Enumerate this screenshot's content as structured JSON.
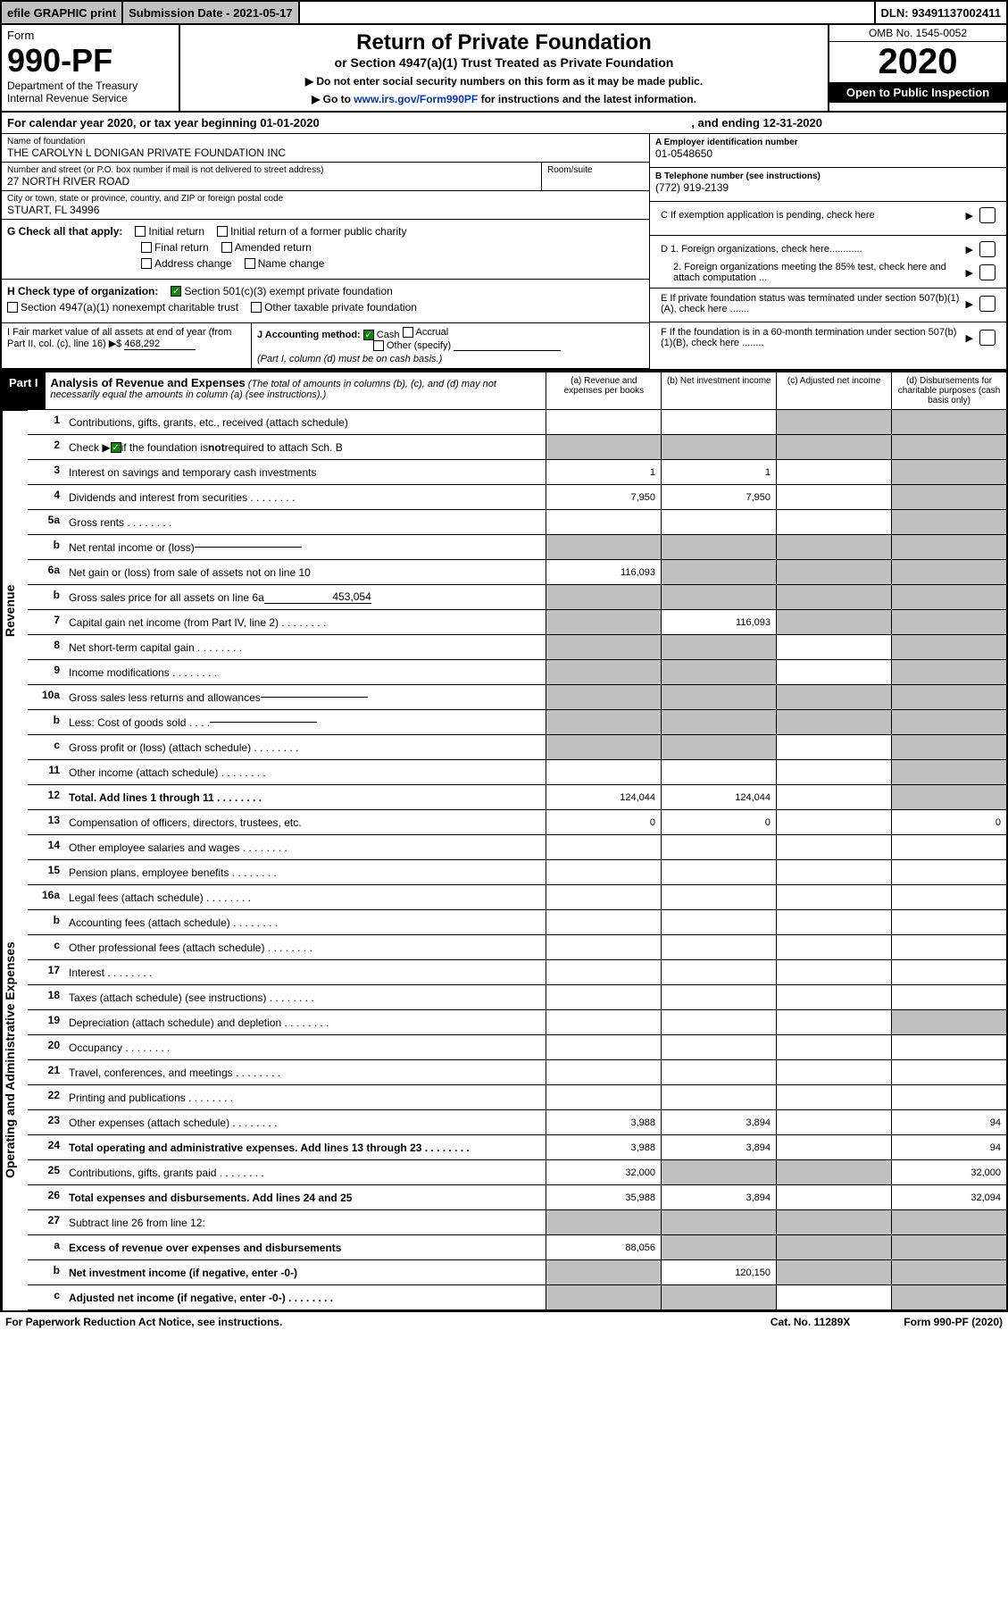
{
  "topbar": {
    "efile": "efile GRAPHIC print",
    "subdate": "Submission Date - 2021-05-17",
    "dln": "DLN: 93491137002411"
  },
  "header": {
    "form": "Form",
    "formnum": "990-PF",
    "dept": "Department of the Treasury",
    "irs": "Internal Revenue Service",
    "title": "Return of Private Foundation",
    "subtitle": "or Section 4947(a)(1) Trust Treated as Private Foundation",
    "note1": "▶ Do not enter social security numbers on this form as it may be made public.",
    "note2": "▶ Go to www.irs.gov/Form990PF for instructions and the latest information.",
    "link": "www.irs.gov/Form990PF",
    "omb": "OMB No. 1545-0052",
    "year": "2020",
    "open": "Open to Public Inspection"
  },
  "cal": {
    "text": "For calendar year 2020, or tax year beginning 01-01-2020",
    "end": ", and ending 12-31-2020"
  },
  "entity": {
    "name_lbl": "Name of foundation",
    "name": "THE CAROLYN L DONIGAN PRIVATE FOUNDATION INC",
    "addr_lbl": "Number and street (or P.O. box number if mail is not delivered to street address)",
    "addr": "27 NORTH RIVER ROAD",
    "room_lbl": "Room/suite",
    "city_lbl": "City or town, state or province, country, and ZIP or foreign postal code",
    "city": "STUART, FL  34996",
    "a_lbl": "A Employer identification number",
    "ein": "01-0548650",
    "b_lbl": "B Telephone number (see instructions)",
    "phone": "(772) 919-2139",
    "c_lbl": "C If exemption application is pending, check here",
    "d1": "D 1. Foreign organizations, check here............",
    "d2": "2. Foreign organizations meeting the 85% test, check here and attach computation ...",
    "e": "E If private foundation status was terminated under section 507(b)(1)(A), check here .......",
    "f": "F If the foundation is in a 60-month termination under section 507(b)(1)(B), check here ........"
  },
  "g": {
    "lbl": "G Check all that apply:",
    "initial": "Initial return",
    "initial_former": "Initial return of a former public charity",
    "final": "Final return",
    "amended": "Amended return",
    "addr_change": "Address change",
    "name_change": "Name change"
  },
  "h": {
    "lbl": "H Check type of organization:",
    "s501": "Section 501(c)(3) exempt private foundation",
    "s4947": "Section 4947(a)(1) nonexempt charitable trust",
    "other": "Other taxable private foundation"
  },
  "i": {
    "lbl": "I Fair market value of all assets at end of year (from Part II, col. (c), line 16) ▶$",
    "val": "468,292"
  },
  "j": {
    "lbl": "J Accounting method:",
    "cash": "Cash",
    "accrual": "Accrual",
    "other": "Other (specify)",
    "note": "(Part I, column (d) must be on cash basis.)"
  },
  "part1": {
    "hdr": "Part I",
    "title": "Analysis of Revenue and Expenses",
    "sub": "(The total of amounts in columns (b), (c), and (d) may not necessarily equal the amounts in column (a) (see instructions).)",
    "cols": {
      "a": "(a)   Revenue and expenses per books",
      "b": "(b)   Net investment income",
      "c": "(c)   Adjusted net income",
      "d": "(d)   Disbursements for charitable purposes (cash basis only)"
    }
  },
  "sides": {
    "rev": "Revenue",
    "exp": "Operating and Administrative Expenses"
  },
  "rows": [
    {
      "n": "1",
      "d": "Contributions, gifts, grants, etc., received (attach schedule)",
      "a": "",
      "b": "",
      "c": "g",
      "dd": "g"
    },
    {
      "n": "2",
      "d": "Check ▶ ☑ if the foundation is not required to attach Sch. B",
      "a": "g",
      "b": "g",
      "c": "g",
      "dd": "g",
      "checked": true
    },
    {
      "n": "3",
      "d": "Interest on savings and temporary cash investments",
      "a": "1",
      "b": "1",
      "c": "",
      "dd": "g"
    },
    {
      "n": "4",
      "d": "Dividends and interest from securities",
      "a": "7,950",
      "b": "7,950",
      "c": "",
      "dd": "g",
      "dots": true
    },
    {
      "n": "5a",
      "d": "Gross rents",
      "a": "",
      "b": "",
      "c": "",
      "dd": "g",
      "dots": true
    },
    {
      "n": "b",
      "d": "Net rental income or (loss)",
      "a": "g",
      "b": "g",
      "c": "g",
      "dd": "g",
      "uline": true
    },
    {
      "n": "6a",
      "d": "Net gain or (loss) from sale of assets not on line 10",
      "a": "116,093",
      "b": "g",
      "c": "g",
      "dd": "g"
    },
    {
      "n": "b",
      "d": "Gross sales price for all assets on line 6a",
      "a": "g",
      "b": "g",
      "c": "g",
      "dd": "g",
      "uline": true,
      "uval": "453,054"
    },
    {
      "n": "7",
      "d": "Capital gain net income (from Part IV, line 2)",
      "a": "g",
      "b": "116,093",
      "c": "g",
      "dd": "g",
      "dots": true
    },
    {
      "n": "8",
      "d": "Net short-term capital gain",
      "a": "g",
      "b": "g",
      "c": "",
      "dd": "g",
      "dots": true
    },
    {
      "n": "9",
      "d": "Income modifications",
      "a": "g",
      "b": "g",
      "c": "",
      "dd": "g",
      "dots": true
    },
    {
      "n": "10a",
      "d": "Gross sales less returns and allowances",
      "a": "g",
      "b": "g",
      "c": "g",
      "dd": "g",
      "uline": true
    },
    {
      "n": "b",
      "d": "Less: Cost of goods sold",
      "a": "g",
      "b": "g",
      "c": "g",
      "dd": "g",
      "dots": true,
      "uline": true
    },
    {
      "n": "c",
      "d": "Gross profit or (loss) (attach schedule)",
      "a": "g",
      "b": "g",
      "c": "",
      "dd": "g",
      "dots": true
    },
    {
      "n": "11",
      "d": "Other income (attach schedule)",
      "a": "",
      "b": "",
      "c": "",
      "dd": "g",
      "dots": true
    },
    {
      "n": "12",
      "d": "Total. Add lines 1 through 11",
      "a": "124,044",
      "b": "124,044",
      "c": "",
      "dd": "g",
      "dots": true,
      "bold": true
    }
  ],
  "rows2": [
    {
      "n": "13",
      "d": "Compensation of officers, directors, trustees, etc.",
      "a": "0",
      "b": "0",
      "c": "",
      "dd": "0"
    },
    {
      "n": "14",
      "d": "Other employee salaries and wages",
      "a": "",
      "b": "",
      "c": "",
      "dd": "",
      "dots": true
    },
    {
      "n": "15",
      "d": "Pension plans, employee benefits",
      "a": "",
      "b": "",
      "c": "",
      "dd": "",
      "dots": true
    },
    {
      "n": "16a",
      "d": "Legal fees (attach schedule)",
      "a": "",
      "b": "",
      "c": "",
      "dd": "",
      "dots": true
    },
    {
      "n": "b",
      "d": "Accounting fees (attach schedule)",
      "a": "",
      "b": "",
      "c": "",
      "dd": "",
      "dots": true
    },
    {
      "n": "c",
      "d": "Other professional fees (attach schedule)",
      "a": "",
      "b": "",
      "c": "",
      "dd": "",
      "dots": true
    },
    {
      "n": "17",
      "d": "Interest",
      "a": "",
      "b": "",
      "c": "",
      "dd": "",
      "dots": true
    },
    {
      "n": "18",
      "d": "Taxes (attach schedule) (see instructions)",
      "a": "",
      "b": "",
      "c": "",
      "dd": "",
      "dots": true
    },
    {
      "n": "19",
      "d": "Depreciation (attach schedule) and depletion",
      "a": "",
      "b": "",
      "c": "",
      "dd": "g",
      "dots": true
    },
    {
      "n": "20",
      "d": "Occupancy",
      "a": "",
      "b": "",
      "c": "",
      "dd": "",
      "dots": true
    },
    {
      "n": "21",
      "d": "Travel, conferences, and meetings",
      "a": "",
      "b": "",
      "c": "",
      "dd": "",
      "dots": true
    },
    {
      "n": "22",
      "d": "Printing and publications",
      "a": "",
      "b": "",
      "c": "",
      "dd": "",
      "dots": true
    },
    {
      "n": "23",
      "d": "Other expenses (attach schedule)",
      "a": "3,988",
      "b": "3,894",
      "c": "",
      "dd": "94",
      "dots": true
    },
    {
      "n": "24",
      "d": "Total operating and administrative expenses. Add lines 13 through 23",
      "a": "3,988",
      "b": "3,894",
      "c": "",
      "dd": "94",
      "dots": true,
      "bold": true
    },
    {
      "n": "25",
      "d": "Contributions, gifts, grants paid",
      "a": "32,000",
      "b": "g",
      "c": "g",
      "dd": "32,000",
      "dots": true
    },
    {
      "n": "26",
      "d": "Total expenses and disbursements. Add lines 24 and 25",
      "a": "35,988",
      "b": "3,894",
      "c": "",
      "dd": "32,094",
      "bold": true
    },
    {
      "n": "27",
      "d": "Subtract line 26 from line 12:",
      "a": "g",
      "b": "g",
      "c": "g",
      "dd": "g"
    },
    {
      "n": "a",
      "d": "Excess of revenue over expenses and disbursements",
      "a": "88,056",
      "b": "g",
      "c": "g",
      "dd": "g",
      "bold": true
    },
    {
      "n": "b",
      "d": "Net investment income (if negative, enter -0-)",
      "a": "g",
      "b": "120,150",
      "c": "g",
      "dd": "g",
      "bold": true
    },
    {
      "n": "c",
      "d": "Adjusted net income (if negative, enter -0-)",
      "a": "g",
      "b": "g",
      "c": "",
      "dd": "g",
      "bold": true,
      "dots": true
    }
  ],
  "footer": {
    "left": "For Paperwork Reduction Act Notice, see instructions.",
    "mid": "Cat. No. 11289X",
    "right": "Form 990-PF (2020)"
  }
}
